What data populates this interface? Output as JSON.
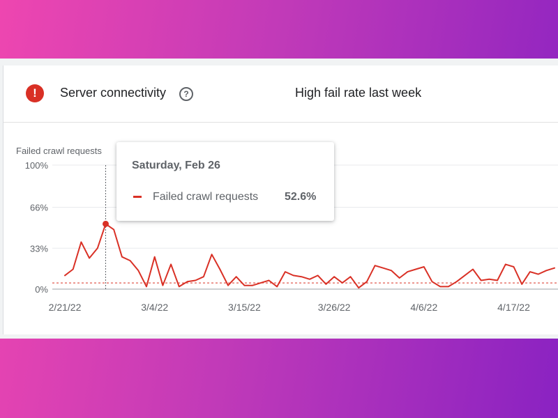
{
  "header": {
    "title": "Server connectivity",
    "status": "High fail rate last week",
    "alert_icon": "error-icon",
    "help_icon": "help-circle-icon",
    "alert_color": "#d93025"
  },
  "tooltip": {
    "date": "Saturday, Feb 26",
    "series_name": "Failed crawl requests",
    "value": "52.6%"
  },
  "chart_data": {
    "type": "line",
    "title": "",
    "ylabel": "Failed crawl requests",
    "xlabel": "",
    "ylim": [
      0,
      100
    ],
    "yticks": [
      {
        "value": 0,
        "label": "0%"
      },
      {
        "value": 33,
        "label": "33%"
      },
      {
        "value": 66,
        "label": "66%"
      },
      {
        "value": 100,
        "label": "100%"
      }
    ],
    "x": [
      "2/21/22",
      "2/22/22",
      "2/23/22",
      "2/24/22",
      "2/25/22",
      "2/26/22",
      "2/27/22",
      "2/28/22",
      "3/1/22",
      "3/2/22",
      "3/3/22",
      "3/4/22",
      "3/5/22",
      "3/6/22",
      "3/7/22",
      "3/8/22",
      "3/9/22",
      "3/10/22",
      "3/11/22",
      "3/12/22",
      "3/13/22",
      "3/14/22",
      "3/15/22",
      "3/16/22",
      "3/17/22",
      "3/18/22",
      "3/19/22",
      "3/20/22",
      "3/21/22",
      "3/22/22",
      "3/23/22",
      "3/24/22",
      "3/25/22",
      "3/26/22",
      "3/27/22",
      "3/28/22",
      "3/29/22",
      "3/30/22",
      "3/31/22",
      "4/1/22",
      "4/2/22",
      "4/3/22",
      "4/4/22",
      "4/5/22",
      "4/6/22",
      "4/7/22",
      "4/8/22",
      "4/9/22",
      "4/10/22",
      "4/11/22",
      "4/12/22",
      "4/13/22",
      "4/14/22",
      "4/15/22",
      "4/16/22",
      "4/17/22",
      "4/18/22",
      "4/19/22",
      "4/20/22",
      "4/21/22",
      "4/22/22"
    ],
    "xticks": [
      "2/21/22",
      "3/4/22",
      "3/15/22",
      "3/26/22",
      "4/6/22",
      "4/17/22"
    ],
    "series": [
      {
        "name": "Failed crawl requests",
        "color": "#d93025",
        "values": [
          11,
          16,
          38,
          25,
          33,
          52.6,
          48,
          26,
          23,
          15,
          2,
          26,
          3,
          20,
          2,
          6,
          7,
          10,
          28,
          16,
          3,
          10,
          3,
          3,
          5,
          7,
          2,
          14,
          11,
          10,
          8,
          11,
          4,
          10,
          5,
          10,
          1,
          6,
          19,
          17,
          15,
          9,
          14,
          16,
          18,
          6,
          2,
          2,
          6,
          11,
          16,
          7,
          8,
          7,
          20,
          18,
          4,
          14,
          12,
          15,
          17
        ]
      }
    ],
    "reference_line": {
      "value": 5,
      "style": "dashed"
    },
    "highlight": {
      "x": "2/26/22",
      "value": 52.6
    },
    "grid": true,
    "legend": "none"
  }
}
